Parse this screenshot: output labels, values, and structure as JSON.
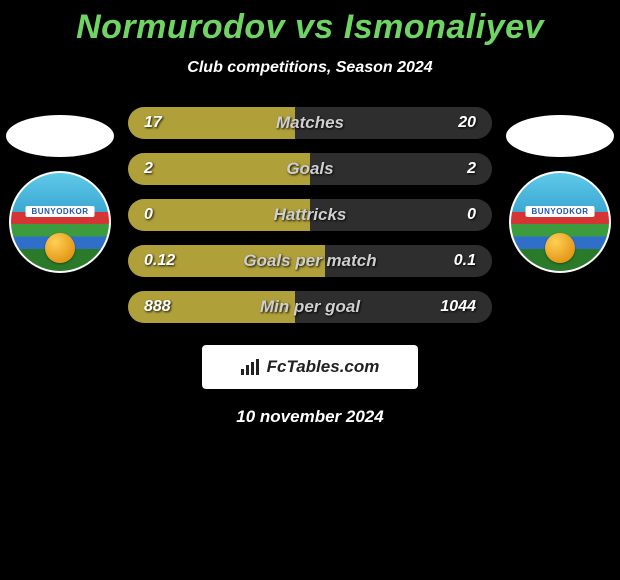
{
  "title": "Normurodov vs Ismonaliyev",
  "subtitle": "Club competitions, Season 2024",
  "colors": {
    "background": "#000000",
    "title": "#6fd464",
    "bar_left": "#b0a03a",
    "bar_right": "#2e2e2e",
    "bar_track": "#1a1a1a",
    "text": "#ffffff",
    "label": "#cfcfcf",
    "card_bg": "#ffffff"
  },
  "badge": {
    "text": "BUNYODKOR"
  },
  "stats": [
    {
      "label": "Matches",
      "left_text": "17",
      "right_text": "20",
      "left_pct": 46
    },
    {
      "label": "Goals",
      "left_text": "2",
      "right_text": "2",
      "left_pct": 50
    },
    {
      "label": "Hattricks",
      "left_text": "0",
      "right_text": "0",
      "left_pct": 50
    },
    {
      "label": "Goals per match",
      "left_text": "0.12",
      "right_text": "0.1",
      "left_pct": 54
    },
    {
      "label": "Min per goal",
      "left_text": "888",
      "right_text": "1044",
      "left_pct": 46
    }
  ],
  "footer_brand": "FcTables.com",
  "date": "10 november 2024"
}
